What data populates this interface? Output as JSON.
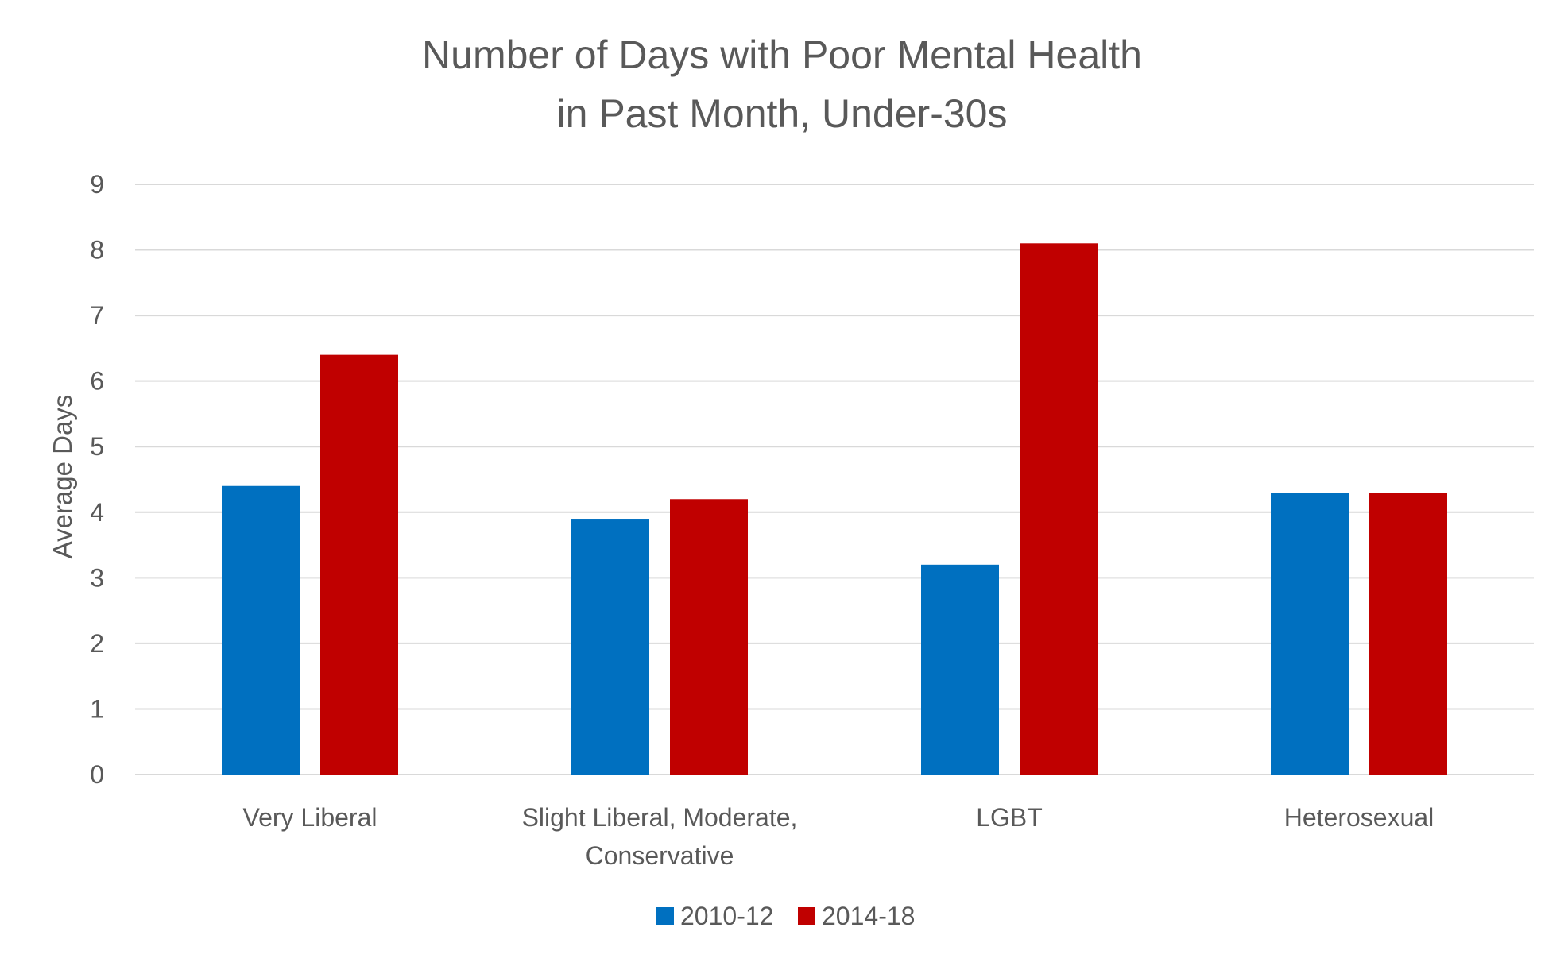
{
  "chart_data": {
    "type": "bar",
    "title": "Number of Days with Poor Mental Health in Past Month, Under-30s",
    "title_lines": [
      "Number of Days with Poor Mental Health",
      "in Past Month, Under-30s"
    ],
    "categories": [
      "Very Liberal",
      "Slight Liberal, Moderate, Conservative",
      "LGBT",
      "Heterosexual"
    ],
    "category_lines": [
      [
        "Very Liberal"
      ],
      [
        "Slight Liberal, Moderate,",
        "Conservative"
      ],
      [
        "LGBT"
      ],
      [
        "Heterosexual"
      ]
    ],
    "series": [
      {
        "name": "2010-12",
        "color": "#0070c0",
        "values": [
          4.4,
          3.9,
          3.2,
          4.3
        ]
      },
      {
        "name": "2014-18",
        "color": "#c00000",
        "values": [
          6.4,
          4.2,
          8.1,
          4.3
        ]
      }
    ],
    "xlabel": "",
    "ylabel": "Average Days",
    "ylim": [
      0,
      9
    ],
    "yticks": [
      0,
      1,
      2,
      3,
      4,
      5,
      6,
      7,
      8,
      9
    ],
    "grid": true,
    "legend": "bottom-center"
  }
}
